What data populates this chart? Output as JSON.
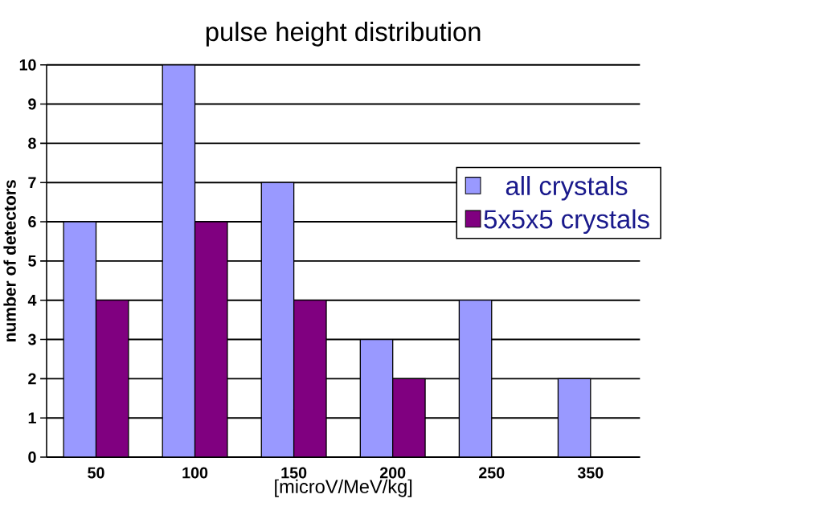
{
  "chart_data": {
    "type": "bar",
    "title": "pulse height distribution",
    "xlabel": "[microV/MeV/kg]",
    "ylabel": "number of detectors",
    "categories": [
      "50",
      "100",
      "150",
      "200",
      "250",
      "350"
    ],
    "series": [
      {
        "name": "all crystals",
        "color": "#9999ff",
        "values": [
          6,
          10,
          7,
          3,
          4,
          2
        ]
      },
      {
        "name": "5x5x5 crystals",
        "color": "#800080",
        "values": [
          4,
          6,
          4,
          2,
          null,
          null
        ]
      }
    ],
    "ylim": [
      0,
      10
    ],
    "yticks": [
      0,
      1,
      2,
      3,
      4,
      5,
      6,
      7,
      8,
      9,
      10
    ],
    "grid": "y",
    "legend": "right"
  }
}
